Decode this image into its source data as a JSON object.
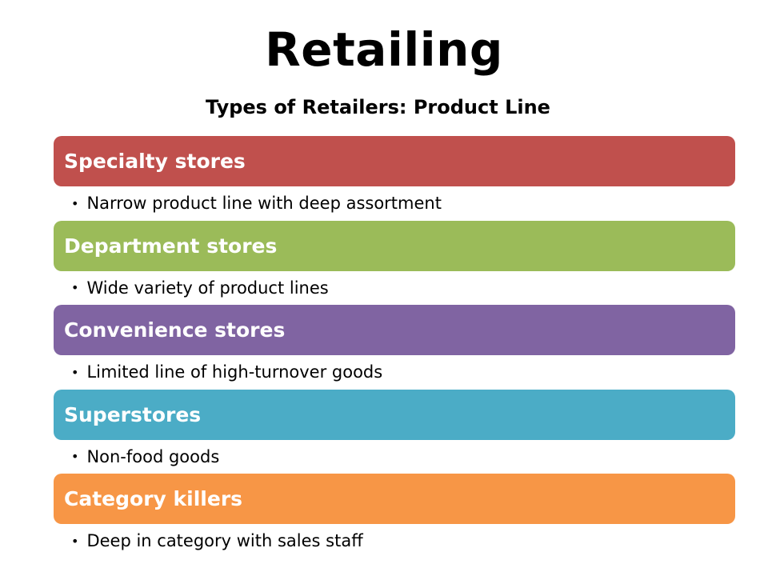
{
  "slide": {
    "title": "Retailing",
    "subtitle": "Types of Retailers: Product Line",
    "bullet_symbol": "•",
    "items": [
      {
        "heading": "Specialty stores",
        "detail": "Narrow product line with deep assortment",
        "color": "#c0504d"
      },
      {
        "heading": "Department stores",
        "detail": "Wide variety of product lines",
        "color": "#9bbb59"
      },
      {
        "heading": "Convenience stores",
        "detail": "Limited line of high-turnover goods",
        "color": "#8064a2"
      },
      {
        "heading": "Superstores",
        "detail": "Non-food goods",
        "color": "#4bacc6"
      },
      {
        "heading": "Category killers",
        "detail": "Deep in category with sales staff",
        "color": "#f79646"
      }
    ]
  }
}
